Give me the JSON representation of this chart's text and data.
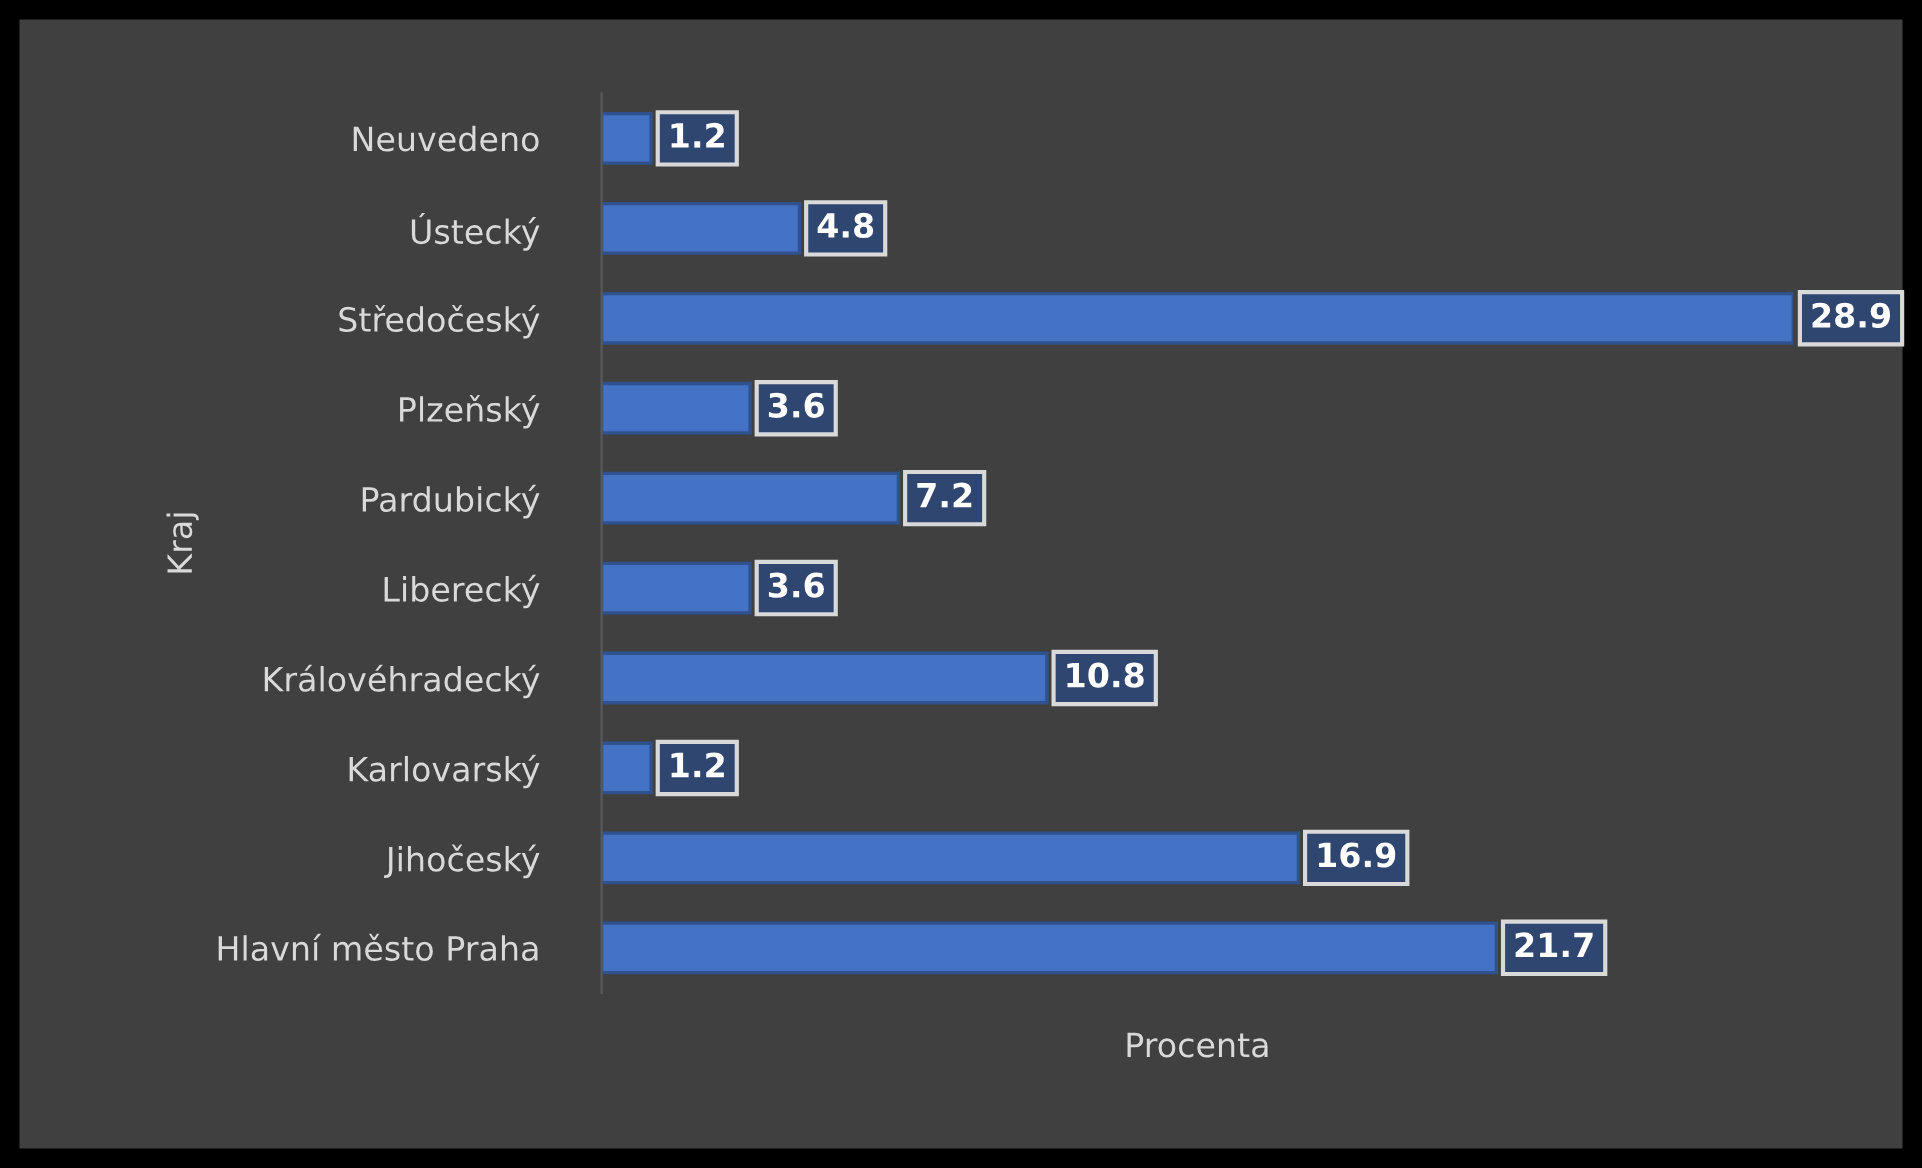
{
  "chart_data": {
    "type": "bar",
    "orientation": "horizontal",
    "xlabel": "Procenta",
    "ylabel": "Kraj",
    "categories": [
      "Neuvedeno",
      "Ústecký",
      "Středočeský",
      "Plzeňský",
      "Pardubický",
      "Liberecký",
      "Královéhradecký",
      "Karlovarský",
      "Jihočeský",
      "Hlavní město Praha"
    ],
    "values": [
      1.2,
      4.8,
      28.9,
      3.6,
      7.2,
      3.6,
      10.8,
      1.2,
      16.9,
      21.7
    ],
    "color": "#4472c4",
    "data_labels": true,
    "grid": false,
    "legend": false
  }
}
